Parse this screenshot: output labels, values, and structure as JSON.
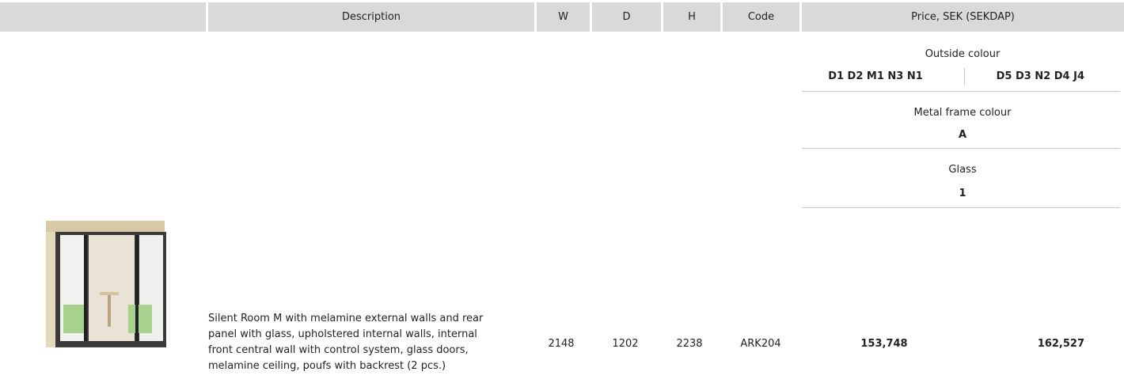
{
  "table": {
    "headers": [
      "Description",
      "W",
      "D",
      "H",
      "Code",
      "Price, SEK (SEKDAP)"
    ],
    "options": {
      "outside_colour": {
        "label": "Outside colour",
        "values": [
          "D1 D2 M1 N3 N1",
          "D5 D3 N2 D4 J4"
        ]
      },
      "metal_frame_colour": {
        "label": "Metal frame colour",
        "value": "A"
      },
      "glass": {
        "label": "Glass",
        "value": "1"
      }
    },
    "rows": [
      {
        "description": [
          "Silent Room M with melamine external walls and rear",
          "panel with glass, upholstered internal walls, internal",
          "front central wall with control system, glass doors,",
          "melamine ceiling, poufs with backrest (2 pcs.)"
        ],
        "w": 2148,
        "d": 1202,
        "h": 2238,
        "code": "ARK204",
        "prices": [
          "153,748",
          "162,527"
        ]
      }
    ]
  }
}
